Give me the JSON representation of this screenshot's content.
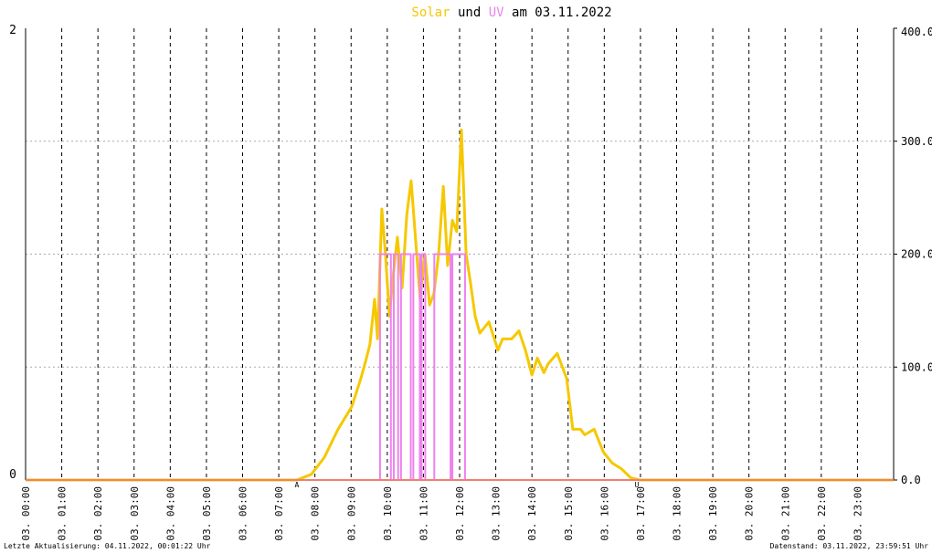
{
  "chart_data": {
    "type": "line",
    "title_parts": [
      "und",
      "am 03.11.2022"
    ],
    "xlim": [
      0,
      24
    ],
    "xticks": [
      {
        "value": 0,
        "label": "03. 00:00"
      },
      {
        "value": 1,
        "label": "03. 01:00"
      },
      {
        "value": 2,
        "label": "03. 02:00"
      },
      {
        "value": 3,
        "label": "03. 03:00"
      },
      {
        "value": 4,
        "label": "03. 04:00"
      },
      {
        "value": 5,
        "label": "03. 05:00"
      },
      {
        "value": 6,
        "label": "03. 06:00"
      },
      {
        "value": 7,
        "label": "03. 07:00"
      },
      {
        "value": 8,
        "label": "03. 08:00"
      },
      {
        "value": 9,
        "label": "03. 09:00"
      },
      {
        "value": 10,
        "label": "03. 10:00"
      },
      {
        "value": 11,
        "label": "03. 11:00"
      },
      {
        "value": 12,
        "label": "03. 12:00"
      },
      {
        "value": 13,
        "label": "03. 13:00"
      },
      {
        "value": 14,
        "label": "03. 14:00"
      },
      {
        "value": 15,
        "label": "03. 15:00"
      },
      {
        "value": 16,
        "label": "03. 16:00"
      },
      {
        "value": 17,
        "label": "03. 17:00"
      },
      {
        "value": 18,
        "label": "03. 18:00"
      },
      {
        "value": 19,
        "label": "03. 19:00"
      },
      {
        "value": 20,
        "label": "03. 20:00"
      },
      {
        "value": 21,
        "label": "03. 21:00"
      },
      {
        "value": 22,
        "label": "03. 22:00"
      },
      {
        "value": 23,
        "label": "03. 23:00"
      }
    ],
    "ylim": [
      0,
      2
    ],
    "yticks": [
      0,
      2
    ],
    "y2lim": [
      0,
      400
    ],
    "y2ticks": [
      {
        "value": 0,
        "label": "0.0"
      },
      {
        "value": 100,
        "label": "100.0"
      },
      {
        "value": 200,
        "label": "200.0"
      },
      {
        "value": 300,
        "label": "300.0"
      },
      {
        "value": 400,
        "label": "400.0"
      }
    ],
    "grid": true,
    "series": [
      {
        "name": "Solar",
        "color": "#f5c800",
        "axis": "y2",
        "x": [
          0,
          7.5,
          7.9,
          8.26,
          8.64,
          9.02,
          9.27,
          9.4,
          9.52,
          9.65,
          9.73,
          9.85,
          9.95,
          10.06,
          10.16,
          10.28,
          10.41,
          10.54,
          10.66,
          10.79,
          10.91,
          11.04,
          11.17,
          11.29,
          11.42,
          11.55,
          11.67,
          11.8,
          11.92,
          12.05,
          12.18,
          12.3,
          12.43,
          12.56,
          12.81,
          13.06,
          13.19,
          13.44,
          13.64,
          13.82,
          14.0,
          14.15,
          14.33,
          14.45,
          14.7,
          14.96,
          15.13,
          15.34,
          15.46,
          15.72,
          15.97,
          16.22,
          16.47,
          16.73,
          16.98,
          24
        ],
        "values": [
          0,
          0,
          5,
          20,
          45,
          65,
          90,
          105,
          120,
          160,
          125,
          240,
          200,
          145,
          180,
          215,
          170,
          235,
          265,
          210,
          160,
          200,
          155,
          165,
          200,
          260,
          190,
          230,
          220,
          310,
          200,
          175,
          145,
          130,
          140,
          115,
          125,
          125,
          132,
          115,
          93,
          108,
          95,
          103,
          112,
          90,
          45,
          45,
          40,
          45,
          25,
          15,
          10,
          2,
          0,
          0
        ]
      },
      {
        "name": "UV",
        "color": "#ee82ee",
        "x": [
          0,
          9.8,
          9.8,
          10.1,
          10.1,
          10.18,
          10.18,
          10.3,
          10.3,
          10.38,
          10.38,
          10.65,
          10.65,
          10.72,
          10.72,
          10.9,
          10.9,
          10.95,
          10.95,
          11.05,
          11.05,
          11.3,
          11.3,
          11.75,
          11.75,
          11.8,
          11.8,
          12.15,
          12.15,
          24
        ],
        "values": [
          0,
          0,
          1,
          1,
          0,
          0,
          1,
          1,
          0,
          0,
          1,
          1,
          0,
          0,
          1,
          1,
          0,
          0,
          1,
          1,
          0,
          0,
          1,
          1,
          0,
          0,
          1,
          1,
          0,
          0
        ]
      }
    ],
    "annotations": [
      {
        "text": "A",
        "x": 7.5
      },
      {
        "text": "U",
        "x": 16.9
      }
    ],
    "footer": {
      "left": "Letzte Aktualisierung: 04.11.2022, 00:01:22 Uhr",
      "right": "Datenstand: 03.11.2022, 23:59:51 Uhr"
    }
  }
}
